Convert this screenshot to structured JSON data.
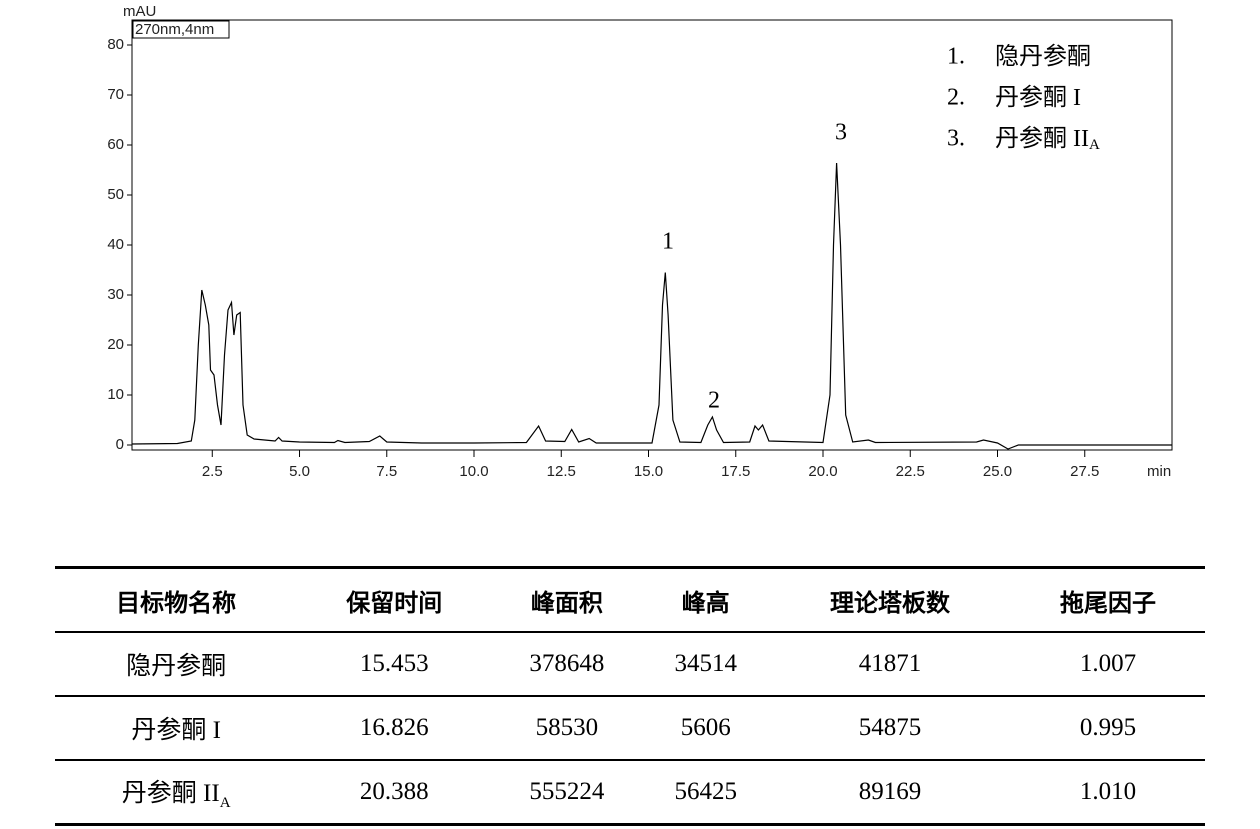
{
  "chart_data": {
    "type": "line",
    "y_unit": "mAU",
    "x_unit": "min",
    "detector_label": "270nm,4nm",
    "xlim": [
      0.2,
      30.0
    ],
    "ylim": [
      -1,
      85
    ],
    "xticks": [
      2.5,
      {
        "value": 5.0,
        "label": "5.0"
      },
      7.5,
      {
        "value": 10.0,
        "label": "10.0"
      },
      12.5,
      {
        "value": 15.0,
        "label": "15.0"
      },
      17.5,
      {
        "value": 20.0,
        "label": "20.0"
      },
      22.5,
      {
        "value": 25.0,
        "label": "25.0"
      },
      27.5
    ],
    "yticks": [
      0,
      10,
      20,
      30,
      40,
      50,
      60,
      70,
      80
    ],
    "x": [
      0.2,
      1.5,
      1.9,
      2.0,
      2.1,
      2.2,
      2.3,
      2.4,
      2.45,
      2.55,
      2.65,
      2.75,
      2.85,
      2.95,
      3.05,
      3.12,
      3.2,
      3.3,
      3.38,
      3.5,
      3.7,
      4.0,
      4.3,
      4.4,
      4.5,
      5.0,
      6.0,
      6.1,
      6.3,
      7.0,
      7.3,
      7.5,
      8.5,
      10.0,
      11.5,
      11.85,
      12.05,
      12.6,
      12.8,
      13.0,
      13.3,
      13.5,
      15.1,
      15.3,
      15.4,
      15.48,
      15.56,
      15.7,
      15.9,
      16.5,
      16.7,
      16.83,
      16.95,
      17.15,
      17.9,
      18.05,
      18.15,
      18.27,
      18.45,
      20.0,
      20.2,
      20.3,
      20.39,
      20.5,
      20.65,
      20.85,
      21.3,
      21.5,
      24.4,
      24.6,
      25.0,
      25.3,
      25.6,
      30.0
    ],
    "series": [
      {
        "color": "#000000",
        "values": [
          0.2,
          0.3,
          0.8,
          5,
          20,
          31,
          28,
          24,
          15,
          14,
          8,
          4,
          18,
          27,
          28.5,
          22,
          26,
          26.5,
          8,
          2,
          1.2,
          1,
          0.8,
          1.5,
          0.8,
          0.6,
          0.5,
          0.9,
          0.5,
          0.7,
          1.8,
          0.6,
          0.4,
          0.4,
          0.5,
          3.8,
          0.8,
          0.7,
          3.1,
          0.6,
          1.3,
          0.4,
          0.4,
          8,
          28,
          34.5,
          26,
          5,
          0.6,
          0.5,
          4,
          5.6,
          3,
          0.5,
          0.6,
          3.8,
          3,
          4,
          0.8,
          0.5,
          10,
          40,
          56.4,
          40,
          6,
          0.6,
          1,
          0.5,
          0.6,
          1,
          0.4,
          -0.8,
          0,
          0
        ]
      }
    ],
    "peak_labels": [
      "1",
      "2",
      "3"
    ],
    "legend": [
      {
        "number": "1.",
        "label": "隐丹参酮"
      },
      {
        "number": "2.",
        "label": "丹参酮 I"
      },
      {
        "number": "3.",
        "label": "丹参酮 II",
        "subscript": "A"
      }
    ]
  },
  "table": {
    "header": [
      "目标物名称",
      "保留时间",
      "峰面积",
      "峰高",
      "理论塔板数",
      "拖尾因子"
    ],
    "rows": [
      [
        {
          "text": "隐丹参酮"
        },
        "15.453",
        "378648",
        "34514",
        "41871",
        "1.007"
      ],
      [
        {
          "text": "丹参酮 I"
        },
        "16.826",
        "58530",
        "5606",
        "54875",
        "0.995"
      ],
      [
        {
          "text": "丹参酮 II",
          "subscript": "A"
        },
        "20.388",
        "555224",
        "56425",
        "89169",
        "1.010"
      ]
    ]
  }
}
